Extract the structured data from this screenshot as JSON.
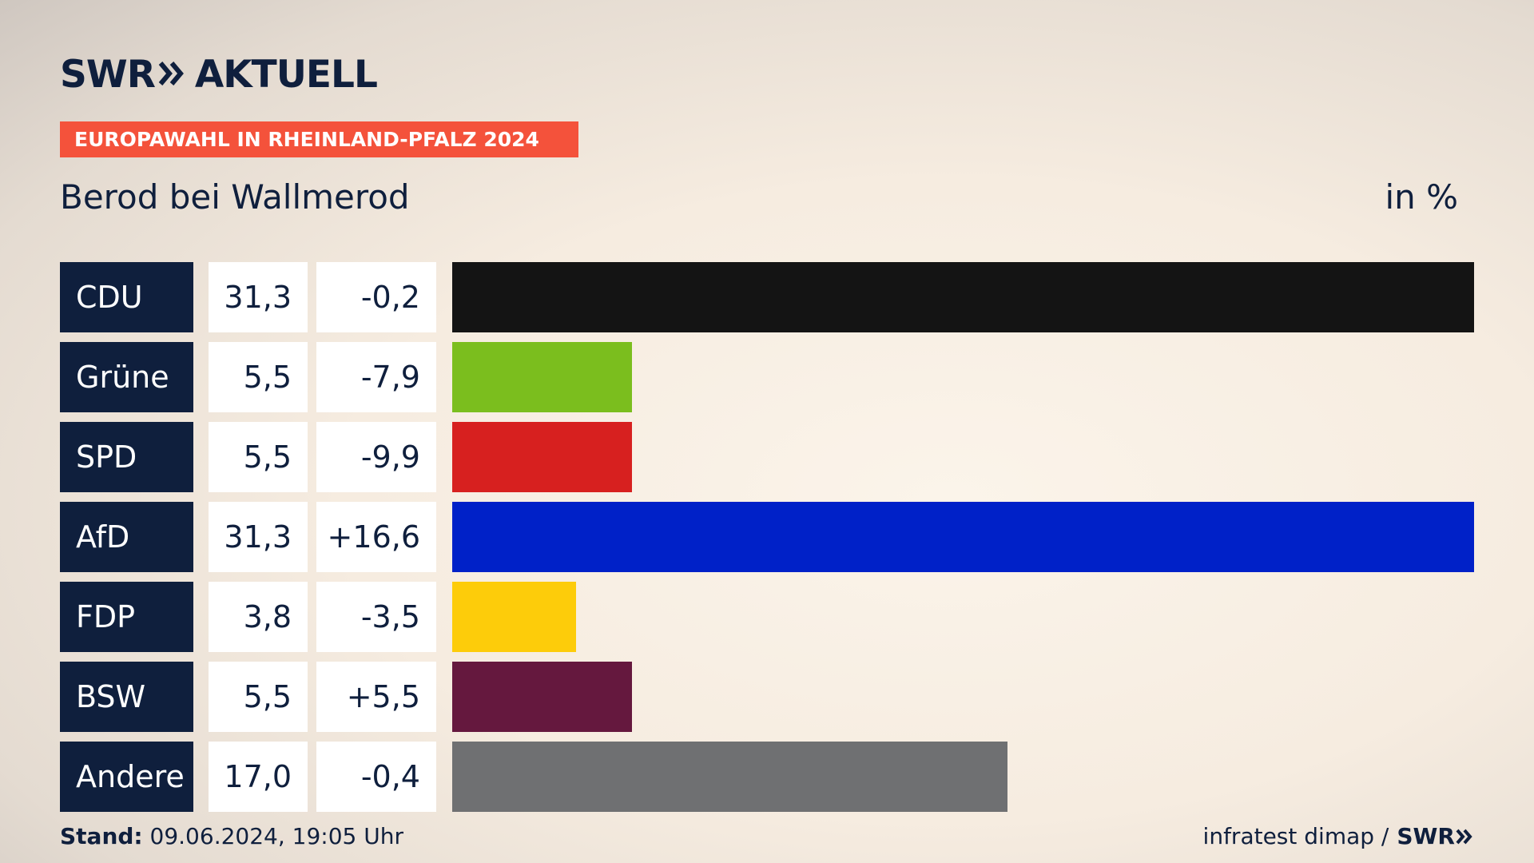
{
  "header": {
    "logo_brand": "SWR",
    "logo_suffix": "AKTUELL",
    "badge": "EUROPAWAHL IN RHEINLAND-PFALZ 2024",
    "subtitle": "Berod bei Wallmerod",
    "unit": "in %"
  },
  "chart_data": {
    "type": "bar",
    "orientation": "horizontal",
    "title": "Berod bei Wallmerod",
    "unit": "in %",
    "categories": [
      "CDU",
      "Grüne",
      "SPD",
      "AfD",
      "FDP",
      "BSW",
      "Andere"
    ],
    "values": [
      31.3,
      5.5,
      5.5,
      31.3,
      3.8,
      5.5,
      17.0
    ],
    "value_labels": [
      "31,3",
      "5,5",
      "5,5",
      "31,3",
      "3,8",
      "5,5",
      "17,0"
    ],
    "diff_labels": [
      "-0,2",
      "-7,9",
      "-9,9",
      "+16,6",
      "-3,5",
      "+5,5",
      "-0,4"
    ],
    "colors": [
      "#141414",
      "#7bbe1e",
      "#d7201f",
      "#0021c8",
      "#fdcc0a",
      "#65183e",
      "#6f7072"
    ],
    "xlim": [
      0,
      31.3
    ]
  },
  "footer": {
    "stand_label": "Stand:",
    "stand_value": "09.06.2024, 19:05 Uhr",
    "source": "infratest dimap /",
    "source_brand": "SWR"
  }
}
